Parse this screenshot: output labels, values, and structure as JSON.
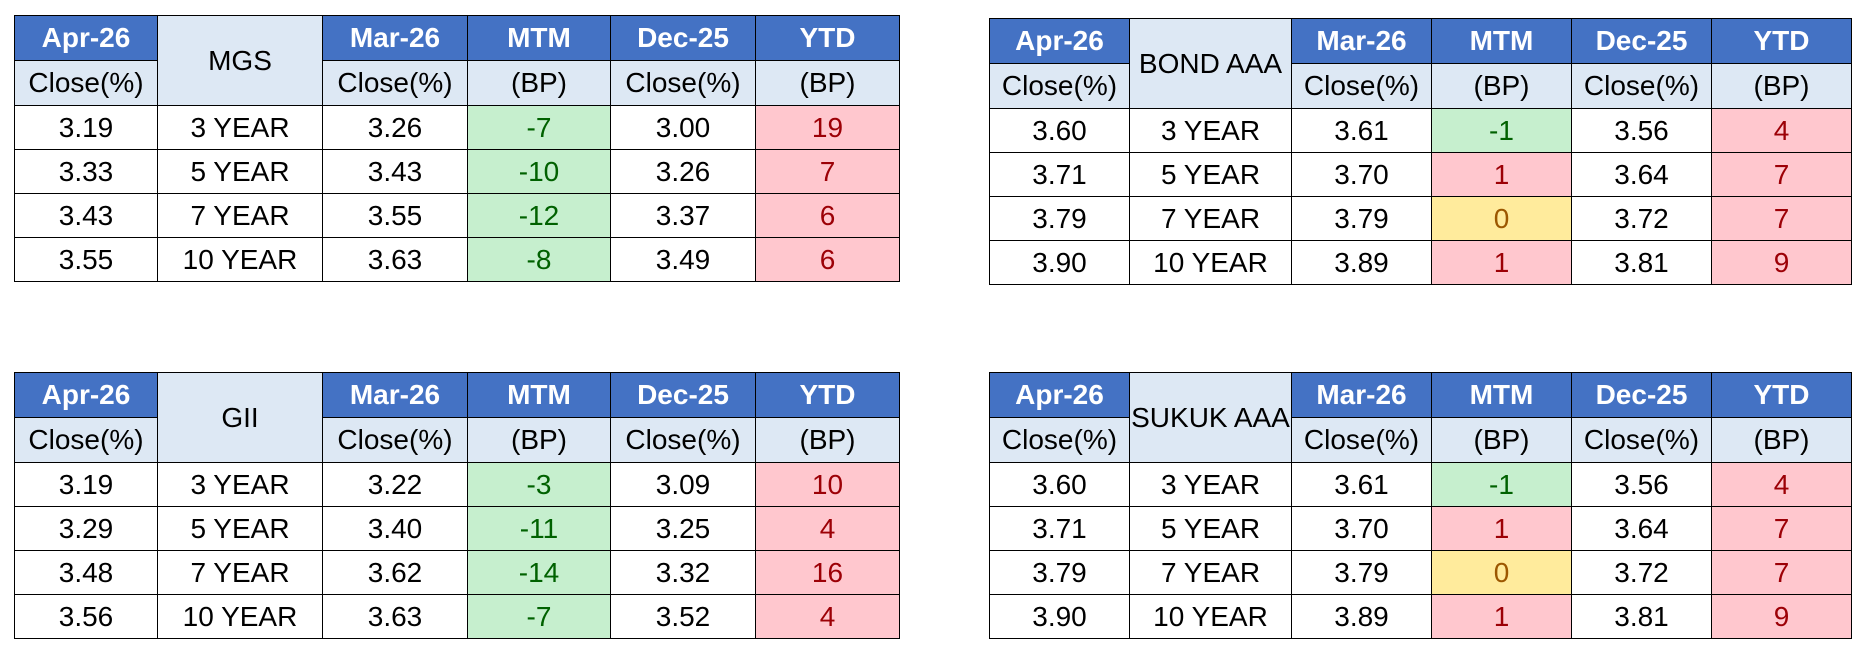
{
  "tables": [
    {
      "id": "mgs",
      "header": {
        "c1": "Apr-26",
        "c1_sub": "Close(%)",
        "name": "MGS",
        "c3": "Mar-26",
        "c3_sub": "Close(%)",
        "c4": "MTM",
        "c4_sub": "(BP)",
        "c5": "Dec-25",
        "c5_sub": "Close(%)",
        "c6": "YTD",
        "c6_sub": "(BP)"
      },
      "rows": [
        {
          "close": "3.19",
          "tenor": "3 YEAR",
          "prev": "3.26",
          "mtm": "-7",
          "mtm_state": "down",
          "dec": "3.00",
          "ytd": "19",
          "ytd_state": "up"
        },
        {
          "close": "3.33",
          "tenor": "5 YEAR",
          "prev": "3.43",
          "mtm": "-10",
          "mtm_state": "down",
          "dec": "3.26",
          "ytd": "7",
          "ytd_state": "up"
        },
        {
          "close": "3.43",
          "tenor": "7 YEAR",
          "prev": "3.55",
          "mtm": "-12",
          "mtm_state": "down",
          "dec": "3.37",
          "ytd": "6",
          "ytd_state": "up"
        },
        {
          "close": "3.55",
          "tenor": "10 YEAR",
          "prev": "3.63",
          "mtm": "-8",
          "mtm_state": "down",
          "dec": "3.49",
          "ytd": "6",
          "ytd_state": "up"
        }
      ]
    },
    {
      "id": "bond-aaa",
      "header": {
        "c1": "Apr-26",
        "c1_sub": "Close(%)",
        "name": "BOND AAA",
        "c3": "Mar-26",
        "c3_sub": "Close(%)",
        "c4": "MTM",
        "c4_sub": "(BP)",
        "c5": "Dec-25",
        "c5_sub": "Close(%)",
        "c6": "YTD",
        "c6_sub": "(BP)"
      },
      "rows": [
        {
          "close": "3.60",
          "tenor": "3 YEAR",
          "prev": "3.61",
          "mtm": "-1",
          "mtm_state": "down",
          "dec": "3.56",
          "ytd": "4",
          "ytd_state": "up"
        },
        {
          "close": "3.71",
          "tenor": "5 YEAR",
          "prev": "3.70",
          "mtm": "1",
          "mtm_state": "up",
          "dec": "3.64",
          "ytd": "7",
          "ytd_state": "up"
        },
        {
          "close": "3.79",
          "tenor": "7 YEAR",
          "prev": "3.79",
          "mtm": "0",
          "mtm_state": "flat",
          "dec": "3.72",
          "ytd": "7",
          "ytd_state": "up"
        },
        {
          "close": "3.90",
          "tenor": "10 YEAR",
          "prev": "3.89",
          "mtm": "1",
          "mtm_state": "up",
          "dec": "3.81",
          "ytd": "9",
          "ytd_state": "up"
        }
      ]
    },
    {
      "id": "gii",
      "header": {
        "c1": "Apr-26",
        "c1_sub": "Close(%)",
        "name": "GII",
        "c3": "Mar-26",
        "c3_sub": "Close(%)",
        "c4": "MTM",
        "c4_sub": "(BP)",
        "c5": "Dec-25",
        "c5_sub": "Close(%)",
        "c6": "YTD",
        "c6_sub": "(BP)"
      },
      "rows": [
        {
          "close": "3.19",
          "tenor": "3 YEAR",
          "prev": "3.22",
          "mtm": "-3",
          "mtm_state": "down",
          "dec": "3.09",
          "ytd": "10",
          "ytd_state": "up"
        },
        {
          "close": "3.29",
          "tenor": "5 YEAR",
          "prev": "3.40",
          "mtm": "-11",
          "mtm_state": "down",
          "dec": "3.25",
          "ytd": "4",
          "ytd_state": "up"
        },
        {
          "close": "3.48",
          "tenor": "7 YEAR",
          "prev": "3.62",
          "mtm": "-14",
          "mtm_state": "down",
          "dec": "3.32",
          "ytd": "16",
          "ytd_state": "up"
        },
        {
          "close": "3.56",
          "tenor": "10 YEAR",
          "prev": "3.63",
          "mtm": "-7",
          "mtm_state": "down",
          "dec": "3.52",
          "ytd": "4",
          "ytd_state": "up"
        }
      ]
    },
    {
      "id": "sukuk-aaa",
      "header": {
        "c1": "Apr-26",
        "c1_sub": "Close(%)",
        "name": "SUKUK AAA",
        "c3": "Mar-26",
        "c3_sub": "Close(%)",
        "c4": "MTM",
        "c4_sub": "(BP)",
        "c5": "Dec-25",
        "c5_sub": "Close(%)",
        "c6": "YTD",
        "c6_sub": "(BP)"
      },
      "rows": [
        {
          "close": "3.60",
          "tenor": "3 YEAR",
          "prev": "3.61",
          "mtm": "-1",
          "mtm_state": "down",
          "dec": "3.56",
          "ytd": "4",
          "ytd_state": "up"
        },
        {
          "close": "3.71",
          "tenor": "5 YEAR",
          "prev": "3.70",
          "mtm": "1",
          "mtm_state": "up",
          "dec": "3.64",
          "ytd": "7",
          "ytd_state": "up"
        },
        {
          "close": "3.79",
          "tenor": "7 YEAR",
          "prev": "3.79",
          "mtm": "0",
          "mtm_state": "flat",
          "dec": "3.72",
          "ytd": "7",
          "ytd_state": "up"
        },
        {
          "close": "3.90",
          "tenor": "10 YEAR",
          "prev": "3.89",
          "mtm": "1",
          "mtm_state": "up",
          "dec": "3.81",
          "ytd": "9",
          "ytd_state": "up"
        }
      ]
    }
  ],
  "colors": {
    "header_blue": "#4472c4",
    "header_light": "#dde8f4",
    "green_fill": "#c6efce",
    "green_text": "#006100",
    "red_fill": "#ffc7ce",
    "red_text": "#9c0006",
    "yellow_fill": "#ffeb9c",
    "yellow_text": "#9c5700"
  }
}
